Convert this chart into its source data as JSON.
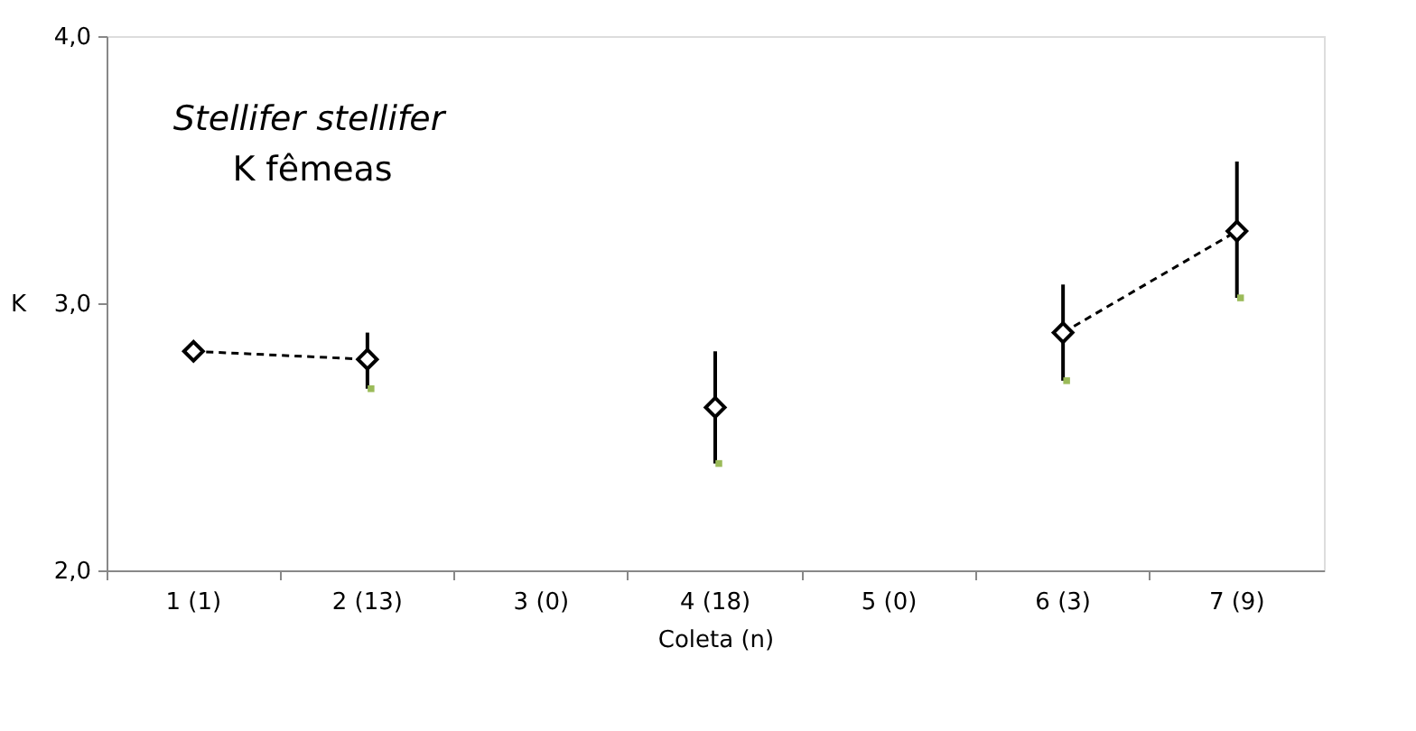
{
  "chart_data": {
    "type": "line",
    "title": "Stellifer stellifer",
    "subtitle": "K fêmeas",
    "xlabel": "Coleta (n)",
    "ylabel": "K",
    "categories": [
      "1 (1)",
      "2 (13)",
      "3 (0)",
      "4 (18)",
      "5 (0)",
      "6 (3)",
      "7 (9)"
    ],
    "series": [
      {
        "type": "line",
        "color": "#000000",
        "marker": "diamond",
        "line_style": "dashed",
        "values": [
          2.82,
          2.79,
          null,
          2.61,
          null,
          2.89,
          3.27
        ],
        "errors": [
          null,
          [
            2.68,
            2.89
          ],
          null,
          [
            2.4,
            2.82
          ],
          null,
          [
            2.71,
            3.07
          ],
          [
            3.02,
            3.53
          ]
        ]
      },
      {
        "type": "scatter",
        "color": "#9bbb59",
        "marker": "square",
        "values": [
          null,
          2.68,
          null,
          2.4,
          null,
          2.71,
          3.02
        ]
      }
    ],
    "ylim": [
      2.0,
      4.0
    ],
    "yticks": [
      {
        "value": 2.0,
        "label": "2,0"
      },
      {
        "value": 3.0,
        "label": "3,0"
      },
      {
        "value": 4.0,
        "label": "4,0"
      }
    ],
    "grid": false
  }
}
